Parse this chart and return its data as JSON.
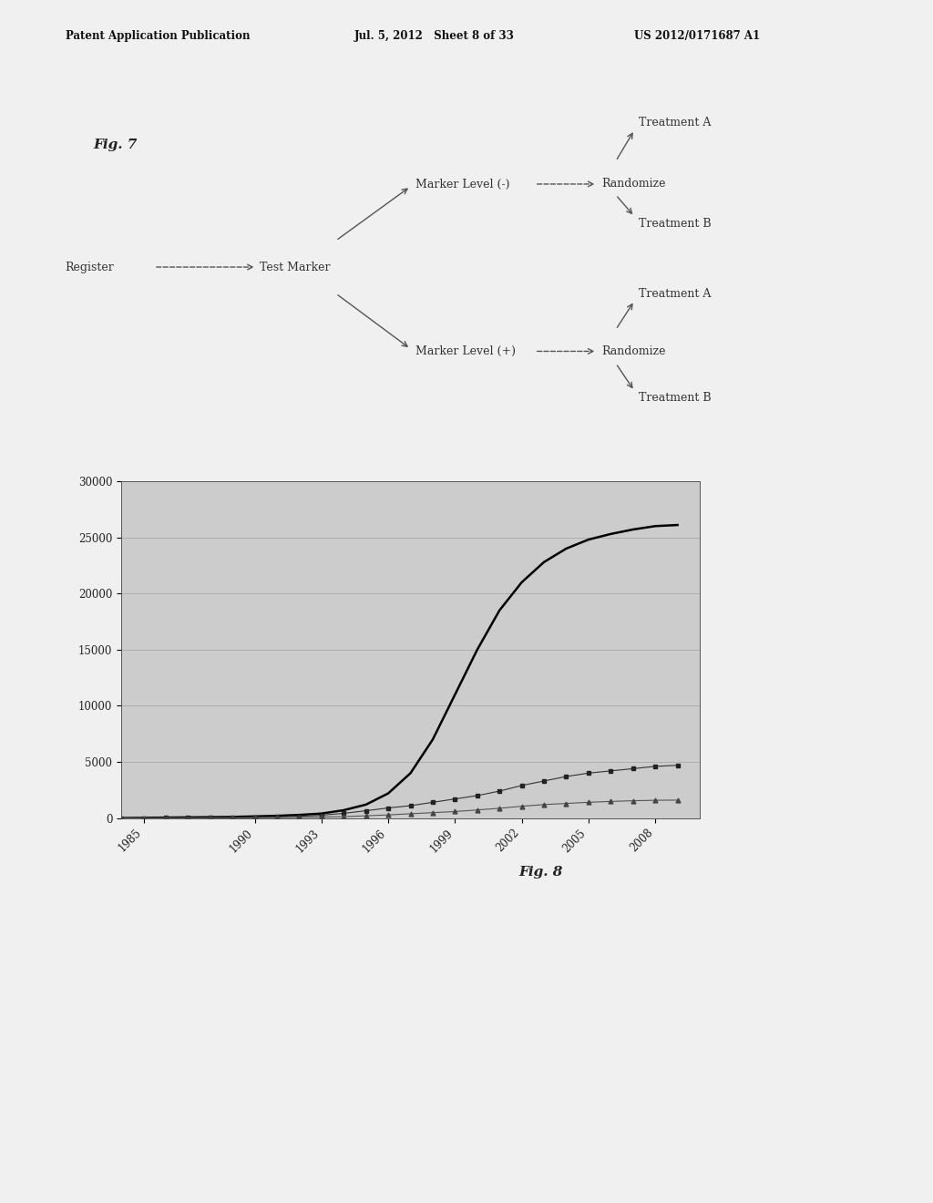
{
  "header_left": "Patent Application Publication",
  "header_mid": "Jul. 5, 2012   Sheet 8 of 33",
  "header_right": "US 2012/0171687 A1",
  "fig7_label": "Fig. 7",
  "fig8_label": "Fig. 8",
  "register_label": "Register",
  "test_marker_label": "Test Marker",
  "marker_neg_label": "Marker Level (-)",
  "marker_pos_label": "Marker Level (+)",
  "randomize_label_1": "Randomize",
  "randomize_label_2": "Randomize",
  "treatment_a_label_1": "Treatment A",
  "treatment_b_label_1": "Treatment B",
  "treatment_a_label_2": "Treatment A",
  "treatment_b_label_2": "Treatment B",
  "chart_bg_color": "#cccccc",
  "page_bg_color": "#f0f0f0",
  "chart_line_color": "#000000",
  "chart_square_color": "#333333",
  "chart_triangle_color": "#555555",
  "years": [
    1984,
    1985,
    1986,
    1987,
    1988,
    1989,
    1990,
    1991,
    1992,
    1993,
    1994,
    1995,
    1996,
    1997,
    1998,
    1999,
    2000,
    2001,
    2002,
    2003,
    2004,
    2005,
    2006,
    2007,
    2008,
    2009
  ],
  "line_data": [
    0,
    20,
    40,
    60,
    80,
    100,
    150,
    200,
    280,
    400,
    700,
    1200,
    2200,
    4000,
    7000,
    11000,
    15000,
    18500,
    21000,
    22800,
    24000,
    24800,
    25300,
    25700,
    26000,
    26100
  ],
  "square_data": [
    0,
    5,
    10,
    18,
    28,
    40,
    65,
    100,
    160,
    250,
    420,
    650,
    900,
    1100,
    1400,
    1700,
    2000,
    2400,
    2900,
    3300,
    3700,
    4000,
    4200,
    4400,
    4600,
    4700
  ],
  "triangle_data": [
    0,
    2,
    5,
    8,
    12,
    18,
    28,
    40,
    60,
    90,
    130,
    200,
    280,
    380,
    480,
    580,
    720,
    870,
    1050,
    1200,
    1300,
    1400,
    1480,
    1540,
    1580,
    1600
  ],
  "x_tick_labels": [
    "1985",
    "1990",
    "1993",
    "1996",
    "1999",
    "2002",
    "2005",
    "2008"
  ],
  "x_tick_positions": [
    1985,
    1990,
    1993,
    1996,
    1999,
    2002,
    2005,
    2008
  ],
  "y_tick_labels": [
    "0",
    "5000",
    "10000",
    "15000",
    "20000",
    "25000",
    "30000"
  ],
  "y_tick_positions": [
    0,
    5000,
    10000,
    15000,
    20000,
    25000,
    30000
  ],
  "ylim": [
    0,
    30000
  ],
  "xlim": [
    1984,
    2010
  ]
}
